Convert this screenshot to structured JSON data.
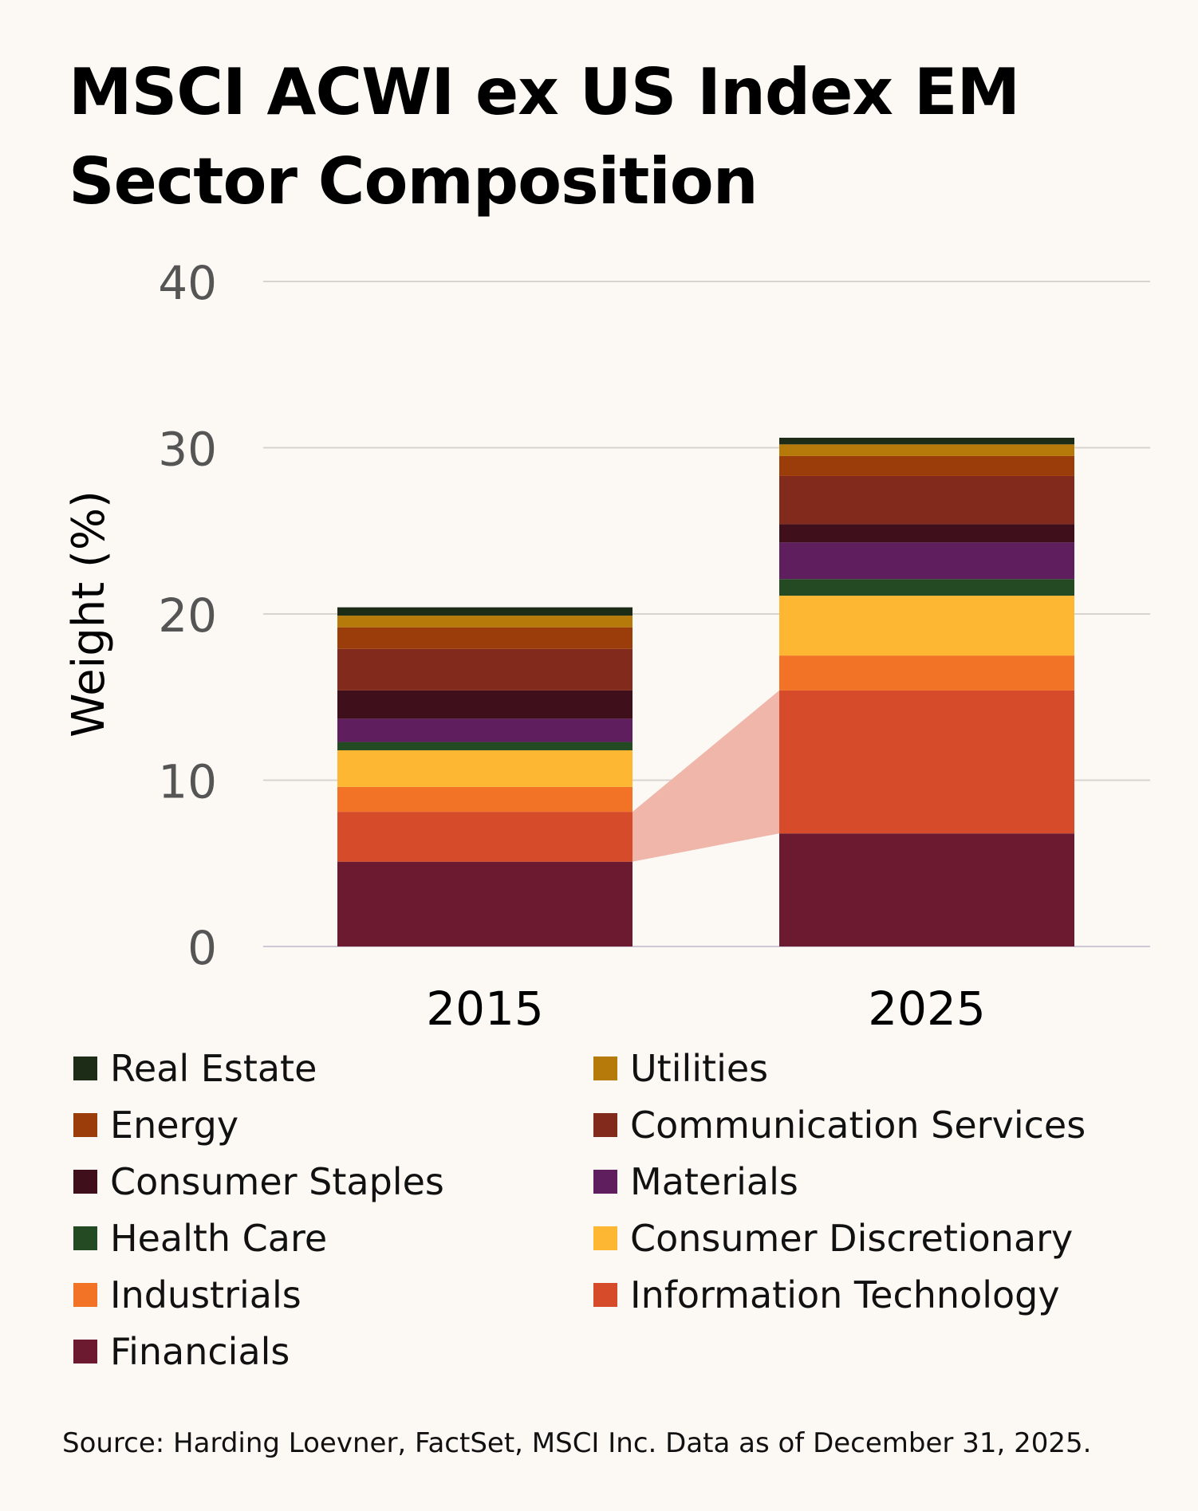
{
  "title_lines": [
    "MSCI ACWI ex US Index EM",
    "Sector Composition"
  ],
  "source": "Source: Harding Loevner, FactSet, MSCI Inc. Data as of December 31, 2025.",
  "chart_data": {
    "type": "bar",
    "stacked": true,
    "categories": [
      "2015",
      "2025"
    ],
    "ylabel": "Weight (%)",
    "xlabel": "",
    "ylim": [
      0,
      40
    ],
    "yticks": [
      "0",
      "10",
      "20",
      "30",
      "40"
    ],
    "grid": true,
    "legend_position": "bottom",
    "highlight": "Information Technology",
    "highlight_color": "#efb6a9",
    "series": [
      {
        "name": "Financials",
        "color": "#6b1a2f",
        "values": [
          5.1,
          6.8
        ]
      },
      {
        "name": "Information Technology",
        "color": "#d64b29",
        "values": [
          3.0,
          8.6
        ]
      },
      {
        "name": "Industrials",
        "color": "#f27326",
        "values": [
          1.5,
          2.1
        ]
      },
      {
        "name": "Consumer Discretionary",
        "color": "#fdb733",
        "values": [
          2.2,
          3.6
        ]
      },
      {
        "name": "Health Care",
        "color": "#244a24",
        "values": [
          0.5,
          1.0
        ]
      },
      {
        "name": "Materials",
        "color": "#5f1f5f",
        "values": [
          1.4,
          2.2
        ]
      },
      {
        "name": "Consumer Staples",
        "color": "#3f0f1c",
        "values": [
          1.7,
          1.1
        ]
      },
      {
        "name": "Communication Services",
        "color": "#822a1b",
        "values": [
          2.5,
          2.9
        ]
      },
      {
        "name": "Energy",
        "color": "#9b3d0a",
        "values": [
          1.3,
          1.2
        ]
      },
      {
        "name": "Utilities",
        "color": "#b67a0a",
        "values": [
          0.7,
          0.7
        ]
      },
      {
        "name": "Real Estate",
        "color": "#1c2c17",
        "values": [
          0.5,
          0.4
        ]
      }
    ]
  },
  "legend": [
    {
      "label": "Real Estate",
      "color": "#1c2c17"
    },
    {
      "label": "Utilities",
      "color": "#b67a0a"
    },
    {
      "label": "Energy",
      "color": "#9b3d0a"
    },
    {
      "label": "Communication Services",
      "color": "#822a1b"
    },
    {
      "label": "Consumer Staples",
      "color": "#3f0f1c"
    },
    {
      "label": "Materials",
      "color": "#5f1f5f"
    },
    {
      "label": "Health Care",
      "color": "#244a24"
    },
    {
      "label": "Consumer Discretionary",
      "color": "#fdb733"
    },
    {
      "label": "Industrials",
      "color": "#f27326"
    },
    {
      "label": "Information Technology",
      "color": "#d64b29"
    },
    {
      "label": "Financials",
      "color": "#6b1a2f"
    }
  ]
}
